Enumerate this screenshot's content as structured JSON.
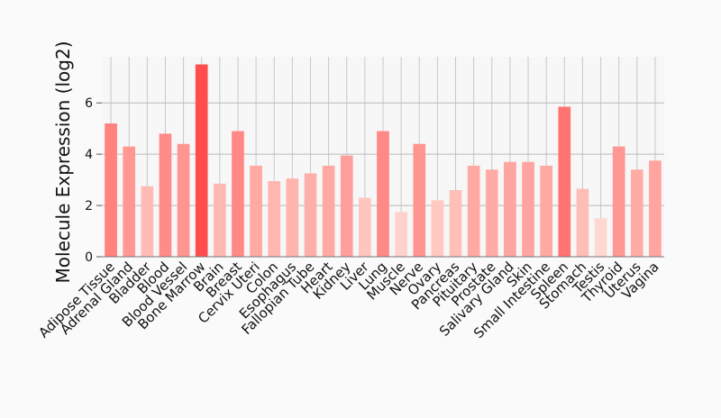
{
  "chart_data": {
    "type": "bar",
    "ylabel": "Molecule Expression (log2)",
    "xlabel": "",
    "title": "",
    "ylim": [
      0,
      7.8
    ],
    "yticks": [
      0,
      2,
      4,
      6
    ],
    "grid": true,
    "categories": [
      "Adipose Tissue",
      "Adrenal Gland",
      "Bladder",
      "Blood",
      "Blood Vessel",
      "Bone Marrow",
      "Brain",
      "Breast",
      "Cervix Uteri",
      "Colon",
      "Esophagus",
      "Fallopian Tube",
      "Heart",
      "Kidney",
      "Liver",
      "Lung",
      "Muscle",
      "Nerve",
      "Ovary",
      "Pancreas",
      "Pituitary",
      "Prostate",
      "Salivary Gland",
      "Skin",
      "Small Intestine",
      "Spleen",
      "Stomach",
      "Testis",
      "Thyroid",
      "Uterus",
      "Vagina"
    ],
    "values": [
      5.2,
      4.3,
      2.75,
      4.8,
      4.4,
      7.5,
      2.85,
      4.9,
      3.55,
      2.95,
      3.05,
      3.25,
      3.55,
      3.95,
      2.3,
      4.9,
      1.75,
      4.4,
      2.2,
      2.6,
      3.55,
      3.4,
      3.7,
      3.7,
      3.55,
      5.85,
      2.65,
      1.5,
      4.3,
      3.4,
      3.75
    ],
    "colors": {
      "high": "#ff4d4d",
      "low": "#ffd8d0"
    }
  }
}
